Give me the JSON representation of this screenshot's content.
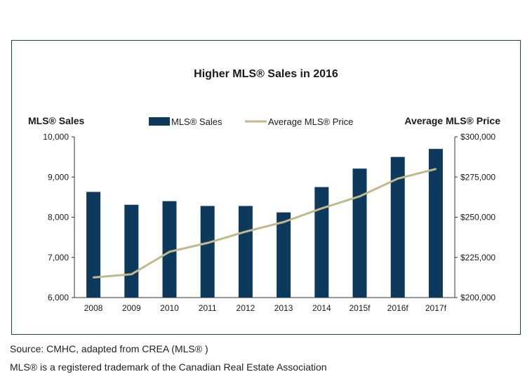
{
  "chart_data": {
    "type": "bar",
    "title": "Higher MLS® Sales in 2016",
    "categories": [
      "2008",
      "2009",
      "2010",
      "2011",
      "2012",
      "2013",
      "2014",
      "2015f",
      "2016f",
      "2017f"
    ],
    "series": [
      {
        "name": "MLS® Sales",
        "type": "bar",
        "axis": "left",
        "values": [
          8630,
          8310,
          8400,
          8280,
          8280,
          8120,
          8750,
          9210,
          9500,
          9700
        ]
      },
      {
        "name": "Average MLS® Price",
        "type": "line",
        "axis": "right",
        "values": [
          212500,
          214500,
          228500,
          234000,
          241000,
          247000,
          255500,
          263000,
          274000,
          280000
        ]
      }
    ],
    "ylabel_left": "MLS® Sales",
    "ylabel_right": "Average MLS® Price",
    "ylim_left": [
      6000,
      10000
    ],
    "ylim_right": [
      200000,
      300000
    ],
    "yticks_left": [
      "10,000",
      "9,000",
      "8,000",
      "7,000",
      "6,000"
    ],
    "yticks_left_values": [
      10000,
      9000,
      8000,
      7000,
      6000
    ],
    "yticks_right": [
      "$300,000",
      "$275,000",
      "$250,000",
      "$225,000",
      "$200,000"
    ],
    "yticks_right_values": [
      300000,
      275000,
      250000,
      225000,
      200000
    ],
    "legend_position": "top-center",
    "grid": false
  },
  "colors": {
    "bar": "#0d3a5c",
    "line": "#c2b98a",
    "axis": "#333333",
    "frame": "#1f3e5a"
  },
  "footer": {
    "source": "Source: CMHC, adapted from CREA (MLS® )",
    "trademark": "MLS® is a registered trademark of the Canadian Real Estate Association"
  }
}
